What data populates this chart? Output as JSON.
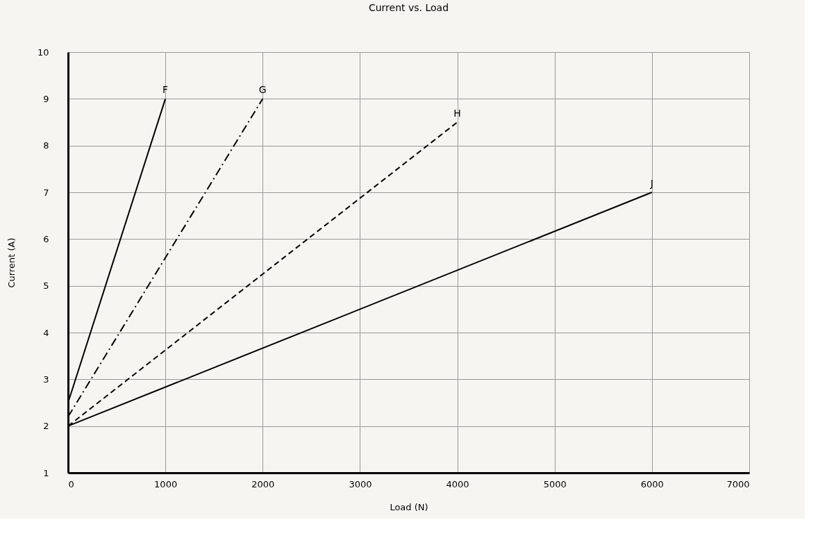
{
  "chart_data": {
    "type": "line",
    "title": "Current vs. Load",
    "xlabel": "Load (N)",
    "ylabel": "Current (A)",
    "xlim": [
      0,
      7000
    ],
    "xticks": [
      0,
      1000,
      2000,
      3000,
      4000,
      5000,
      6000,
      7000
    ],
    "ylim": [
      1,
      10
    ],
    "yticks": [
      1,
      2,
      3,
      4,
      5,
      6,
      7,
      8,
      9,
      10
    ],
    "grid": true,
    "marker": "none",
    "series": [
      {
        "name": "F",
        "color": "#000000",
        "line_style": "solid",
        "x": [
          0,
          1000
        ],
        "values": [
          2.5,
          9
        ]
      },
      {
        "name": "G",
        "color": "#000000",
        "line_style": "dashdot",
        "x": [
          0,
          2000
        ],
        "values": [
          2.2,
          9
        ]
      },
      {
        "name": "H",
        "color": "#000000",
        "line_style": "dashed",
        "x": [
          0,
          4000
        ],
        "values": [
          2.0,
          8.5
        ]
      },
      {
        "name": "J",
        "color": "#000000",
        "line_style": "solid",
        "x": [
          0,
          6000
        ],
        "values": [
          2.0,
          7
        ]
      }
    ]
  }
}
